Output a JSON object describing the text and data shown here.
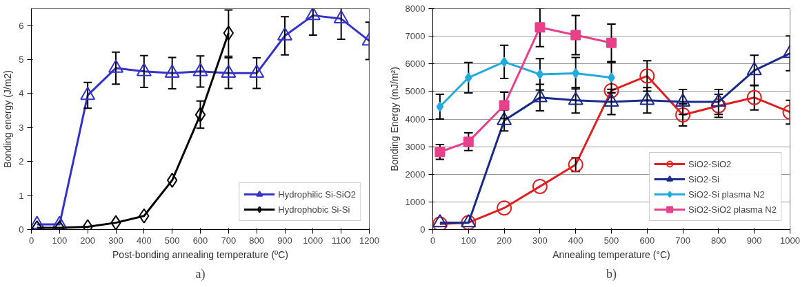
{
  "chart_data": [
    {
      "type": "line",
      "ylabel": "Bonding energy (J/m2)",
      "xlabel": "Post-bonding annealing temperature (ºC)",
      "annotations": [
        "a)"
      ],
      "xlim": [
        0,
        1200
      ],
      "ylim": [
        0,
        6.5
      ],
      "xticks": [
        0,
        100,
        200,
        300,
        400,
        500,
        600,
        700,
        800,
        900,
        1000,
        1100,
        1200
      ],
      "yticks": [
        0,
        1,
        2,
        3,
        4,
        5,
        6
      ],
      "grid": false,
      "legend": "bottom right",
      "series": [
        {
          "name": "Hydrophilic Si-SiO2",
          "color": "#3333cc",
          "marker": "triangle",
          "x": [
            20,
            100,
            200,
            300,
            400,
            500,
            600,
            700,
            800,
            900,
            1000,
            1100,
            1200
          ],
          "values": [
            0.15,
            0.15,
            3.95,
            4.75,
            4.65,
            4.6,
            4.65,
            4.6,
            4.6,
            5.7,
            6.3,
            6.2,
            5.55
          ],
          "errors": [
            null,
            null,
            0.38,
            0.47,
            0.47,
            0.46,
            0.46,
            0.45,
            0.45,
            0.56,
            0.58,
            0.6,
            0.55
          ]
        },
        {
          "name": "Hydrophobic Si-Si",
          "color": "#000000",
          "marker": "diamond",
          "x": [
            20,
            100,
            200,
            300,
            400,
            500,
            600,
            700
          ],
          "values": [
            0.05,
            0.05,
            0.08,
            0.2,
            0.4,
            1.45,
            3.38,
            5.78
          ],
          "errors": [
            null,
            null,
            null,
            null,
            null,
            null,
            0.4,
            0.68
          ]
        }
      ]
    },
    {
      "type": "line",
      "ylabel": "Bonding Energy (mJ/m²)",
      "xlabel": "Annealing temperature (°C)",
      "annotations": [
        "b)"
      ],
      "xlim": [
        0,
        1000
      ],
      "ylim": [
        0,
        8000
      ],
      "xticks": [
        0,
        100,
        200,
        300,
        400,
        500,
        600,
        700,
        800,
        900,
        1000
      ],
      "yticks": [
        0,
        1000,
        2000,
        3000,
        4000,
        5000,
        6000,
        7000,
        8000
      ],
      "grid": "y",
      "legend": "bottom right",
      "series": [
        {
          "name": "SiO2-SiO2",
          "color": "#e02020",
          "marker": "circle",
          "x": [
            20,
            100,
            200,
            300,
            400,
            500,
            600,
            700,
            800,
            900,
            1000
          ],
          "values": [
            200,
            250,
            780,
            1560,
            2350,
            5030,
            5560,
            4150,
            4480,
            4780,
            4250
          ],
          "errors": [
            null,
            null,
            null,
            null,
            250,
            null,
            550,
            400,
            420,
            450,
            430
          ]
        },
        {
          "name": "SiO2-Si",
          "color": "#1a2a8a",
          "marker": "triangle",
          "x": [
            20,
            100,
            200,
            300,
            400,
            500,
            600,
            700,
            800,
            900,
            1000
          ],
          "values": [
            250,
            250,
            3950,
            4780,
            4680,
            4620,
            4680,
            4620,
            4620,
            5760,
            6380
          ],
          "errors": [
            null,
            null,
            380,
            480,
            460,
            460,
            460,
            450,
            450,
            550,
            630
          ]
        },
        {
          "name": "SiO2-Si plasma N2",
          "color": "#22aadd",
          "marker": "diamond",
          "x": [
            20,
            100,
            200,
            300,
            400,
            500
          ],
          "values": [
            4450,
            5500,
            6070,
            5620,
            5660,
            5500
          ],
          "errors": [
            450,
            550,
            600,
            570,
            570,
            550
          ]
        },
        {
          "name": "SiO2-SiO2 plasma N2",
          "color": "#e8408a",
          "marker": "square",
          "x": [
            20,
            100,
            200,
            300,
            400,
            500
          ],
          "values": [
            2810,
            3180,
            4500,
            7320,
            7040,
            6760
          ],
          "errors": [
            270,
            320,
            470,
            700,
            710,
            680
          ]
        }
      ]
    }
  ]
}
